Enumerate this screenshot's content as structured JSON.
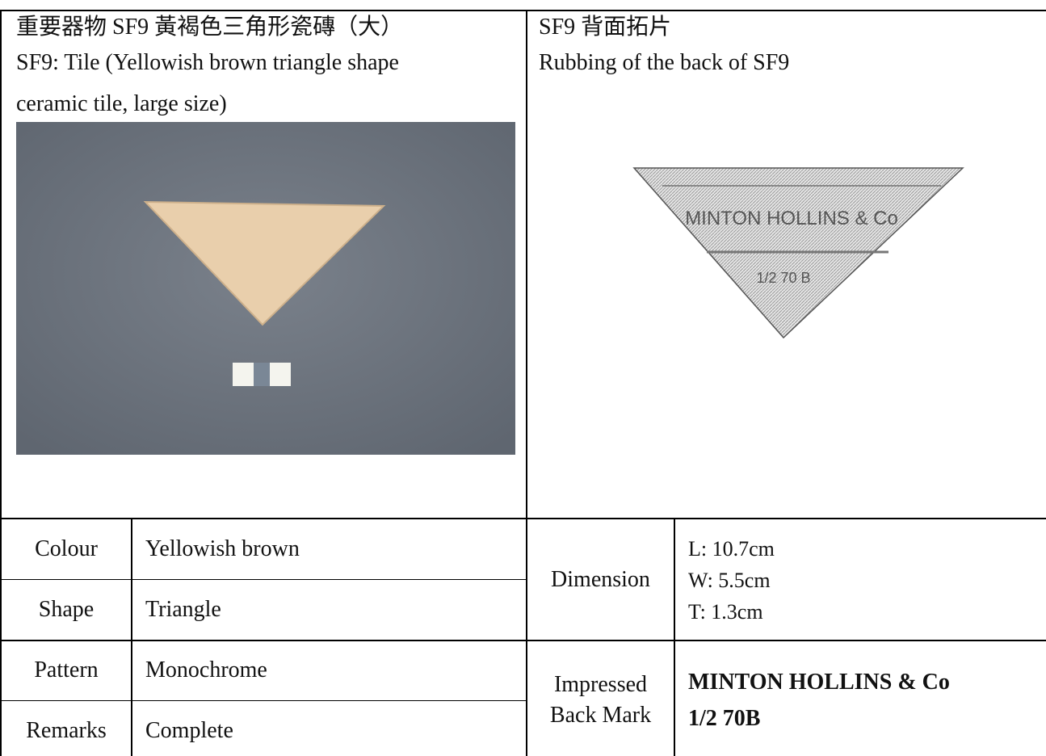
{
  "left_panel": {
    "title_zh": "重要器物 SF9 黃褐色三角形瓷磚（大）",
    "title_en_lines": [
      "SF9: Tile (Yellowish brown triangle shape",
      "ceramic tile, large size)"
    ]
  },
  "right_panel": {
    "title_zh": "SF9 背面拓片",
    "title_en": "Rubbing of the back of SF9",
    "inscription": [
      "MINTON HOLLINS & Co",
      "1/2 70 B"
    ]
  },
  "details": {
    "rows": [
      {
        "label": "Colour",
        "value": "Yellowish brown"
      },
      {
        "label": "Shape",
        "value": "Triangle"
      },
      {
        "label": "Pattern",
        "value": "Monochrome"
      },
      {
        "label": "Remarks",
        "value": "Complete"
      }
    ],
    "dimension": {
      "label": "Dimension",
      "lines": [
        "L: 10.7cm",
        "W: 5.5cm",
        "T: 1.3cm"
      ]
    },
    "back_mark": {
      "label_lines": [
        "Impressed",
        "Back Mark"
      ],
      "value_lines": [
        "MINTON HOLLINS & Co",
        "1/2 70B"
      ]
    }
  }
}
